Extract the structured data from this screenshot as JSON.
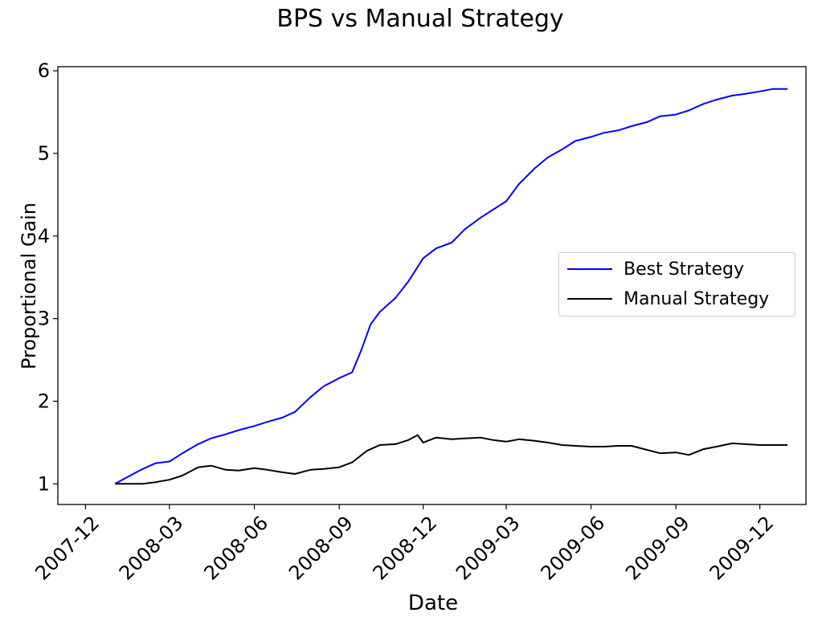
{
  "chart_data": {
    "type": "line",
    "title": "BPS vs Manual Strategy",
    "xlabel": "Date",
    "ylabel": "Proportional Gain",
    "xlim": [
      "2007-11-01",
      "2010-01-20"
    ],
    "ylim": [
      0.75,
      6.05
    ],
    "xticks": [
      "2007-12",
      "2008-03",
      "2008-06",
      "2008-09",
      "2008-12",
      "2009-03",
      "2009-06",
      "2009-09",
      "2009-12"
    ],
    "yticks": [
      1,
      2,
      3,
      4,
      5,
      6
    ],
    "legend_position": "center-right",
    "grid": false,
    "series": [
      {
        "name": "Best Strategy",
        "color": "#0000ff",
        "x": [
          "2008-01-02",
          "2008-01-15",
          "2008-02-01",
          "2008-02-15",
          "2008-03-01",
          "2008-03-15",
          "2008-04-01",
          "2008-04-15",
          "2008-05-01",
          "2008-05-15",
          "2008-06-01",
          "2008-06-15",
          "2008-07-01",
          "2008-07-15",
          "2008-08-01",
          "2008-08-15",
          "2008-09-01",
          "2008-09-15",
          "2008-09-25",
          "2008-10-05",
          "2008-10-15",
          "2008-11-01",
          "2008-11-15",
          "2008-12-01",
          "2008-12-15",
          "2009-01-01",
          "2009-01-15",
          "2009-02-01",
          "2009-02-15",
          "2009-03-01",
          "2009-03-15",
          "2009-04-01",
          "2009-04-15",
          "2009-05-01",
          "2009-05-15",
          "2009-06-01",
          "2009-06-15",
          "2009-07-01",
          "2009-07-15",
          "2009-08-01",
          "2009-08-15",
          "2009-09-01",
          "2009-09-15",
          "2009-10-01",
          "2009-10-15",
          "2009-11-01",
          "2009-11-15",
          "2009-12-01",
          "2009-12-15",
          "2009-12-31"
        ],
        "values": [
          1.0,
          1.08,
          1.18,
          1.25,
          1.27,
          1.37,
          1.48,
          1.55,
          1.6,
          1.65,
          1.7,
          1.75,
          1.8,
          1.87,
          2.05,
          2.18,
          2.28,
          2.35,
          2.62,
          2.93,
          3.08,
          3.25,
          3.45,
          3.73,
          3.85,
          3.92,
          4.08,
          4.22,
          4.32,
          4.42,
          4.63,
          4.82,
          4.95,
          5.05,
          5.15,
          5.2,
          5.25,
          5.28,
          5.33,
          5.38,
          5.45,
          5.47,
          5.52,
          5.6,
          5.65,
          5.7,
          5.72,
          5.75,
          5.78,
          5.78
        ]
      },
      {
        "name": "Manual Strategy",
        "color": "#000000",
        "x": [
          "2008-01-02",
          "2008-01-15",
          "2008-02-01",
          "2008-02-15",
          "2008-03-01",
          "2008-03-15",
          "2008-04-01",
          "2008-04-15",
          "2008-05-01",
          "2008-05-15",
          "2008-06-01",
          "2008-06-15",
          "2008-07-01",
          "2008-07-15",
          "2008-08-01",
          "2008-08-15",
          "2008-09-01",
          "2008-09-15",
          "2008-10-01",
          "2008-10-15",
          "2008-11-01",
          "2008-11-15",
          "2008-11-25",
          "2008-12-01",
          "2008-12-15",
          "2009-01-01",
          "2009-01-15",
          "2009-02-01",
          "2009-02-15",
          "2009-03-01",
          "2009-03-15",
          "2009-04-01",
          "2009-04-15",
          "2009-05-01",
          "2009-05-15",
          "2009-06-01",
          "2009-06-15",
          "2009-07-01",
          "2009-07-15",
          "2009-08-01",
          "2009-08-15",
          "2009-09-01",
          "2009-09-15",
          "2009-10-01",
          "2009-10-15",
          "2009-11-01",
          "2009-11-15",
          "2009-12-01",
          "2009-12-15",
          "2009-12-31"
        ],
        "values": [
          1.0,
          1.0,
          1.0,
          1.02,
          1.05,
          1.1,
          1.2,
          1.22,
          1.17,
          1.16,
          1.19,
          1.17,
          1.14,
          1.12,
          1.17,
          1.18,
          1.2,
          1.26,
          1.4,
          1.47,
          1.48,
          1.53,
          1.59,
          1.5,
          1.56,
          1.54,
          1.55,
          1.56,
          1.53,
          1.51,
          1.54,
          1.52,
          1.5,
          1.47,
          1.46,
          1.45,
          1.45,
          1.46,
          1.46,
          1.41,
          1.37,
          1.38,
          1.35,
          1.42,
          1.45,
          1.49,
          1.48,
          1.47,
          1.47,
          1.47
        ]
      }
    ]
  }
}
